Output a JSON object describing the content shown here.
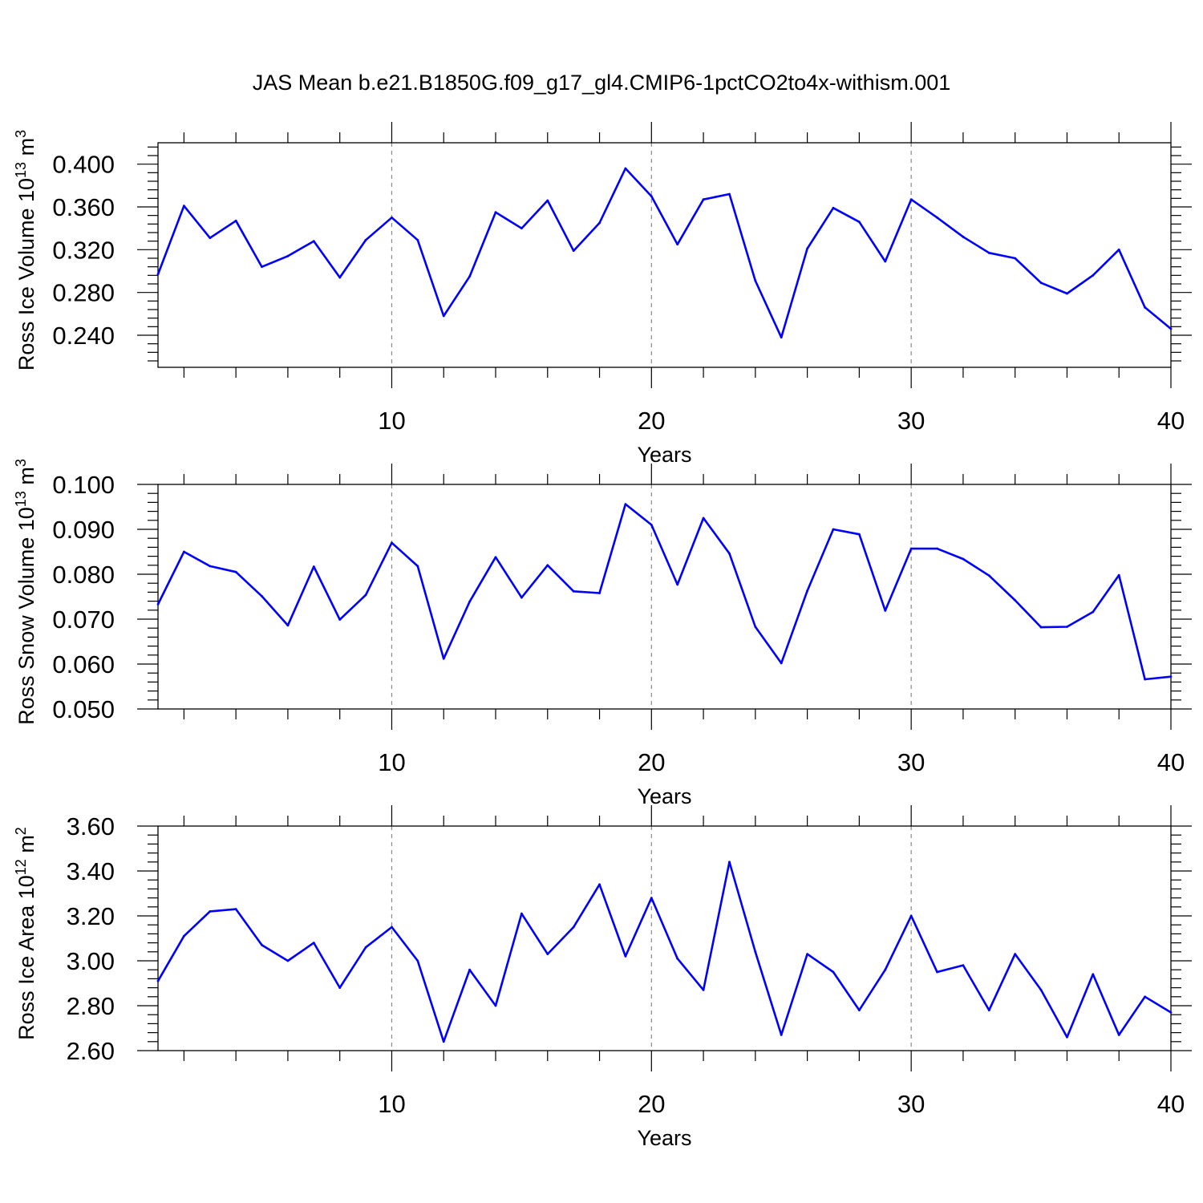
{
  "figure_title": "JAS Mean b.e21.B1850G.f09_g17_gl4.CMIP6-1pctCO2to4x-withism.001",
  "colors": {
    "line": "#0000ff",
    "axis": "#000000",
    "grid": "#888888"
  },
  "chart_data": [
    {
      "type": "line",
      "title": "",
      "xlabel": "Years",
      "ylabel": "Ross Ice Volume 10^13 m^3",
      "ylabel_parts": {
        "main": "Ross Ice Volume 10",
        "sup1": "13",
        "mid": " m",
        "sup2": "3"
      },
      "xlim": [
        1,
        40
      ],
      "ylim": [
        0.21,
        0.42
      ],
      "x_ticks": [
        10,
        20,
        30,
        40
      ],
      "x_tick_labels": [
        "10",
        "20",
        "30",
        "40"
      ],
      "y_ticks": [
        0.24,
        0.28,
        0.32,
        0.36,
        0.4
      ],
      "y_tick_labels": [
        "0.240",
        "0.280",
        "0.320",
        "0.360",
        "0.400"
      ],
      "grid": "vertical dashed at major x ticks",
      "series": [
        {
          "name": "Ross Ice Volume",
          "x": [
            1,
            2,
            3,
            4,
            5,
            6,
            7,
            8,
            9,
            10,
            11,
            12,
            13,
            14,
            15,
            16,
            17,
            18,
            19,
            20,
            21,
            22,
            23,
            24,
            25,
            26,
            27,
            28,
            29,
            30,
            31,
            32,
            33,
            34,
            35,
            36,
            37,
            38,
            39,
            40
          ],
          "values": [
            0.297,
            0.361,
            0.331,
            0.347,
            0.304,
            0.314,
            0.328,
            0.294,
            0.329,
            0.35,
            0.329,
            0.258,
            0.295,
            0.355,
            0.34,
            0.366,
            0.319,
            0.345,
            0.396,
            0.37,
            0.325,
            0.367,
            0.372,
            0.291,
            0.238,
            0.321,
            0.359,
            0.346,
            0.309,
            0.367,
            0.35,
            0.332,
            0.317,
            0.312,
            0.289,
            0.279,
            0.296,
            0.32,
            0.266,
            0.246
          ]
        }
      ]
    },
    {
      "type": "line",
      "title": "",
      "xlabel": "Years",
      "ylabel": "Ross Snow Volume 10^13 m^3",
      "ylabel_parts": {
        "main": "Ross Snow Volume 10",
        "sup1": "13",
        "mid": " m",
        "sup2": "3"
      },
      "xlim": [
        1,
        40
      ],
      "ylim": [
        0.05,
        0.1
      ],
      "x_ticks": [
        10,
        20,
        30,
        40
      ],
      "x_tick_labels": [
        "10",
        "20",
        "30",
        "40"
      ],
      "y_ticks": [
        0.05,
        0.06,
        0.07,
        0.08,
        0.09,
        0.1
      ],
      "y_tick_labels": [
        "0.050",
        "0.060",
        "0.070",
        "0.080",
        "0.090",
        "0.100"
      ],
      "grid": "vertical dashed at major x ticks",
      "series": [
        {
          "name": "Ross Snow Volume",
          "x": [
            1,
            2,
            3,
            4,
            5,
            6,
            7,
            8,
            9,
            10,
            11,
            12,
            13,
            14,
            15,
            16,
            17,
            18,
            19,
            20,
            21,
            22,
            23,
            24,
            25,
            26,
            27,
            28,
            29,
            30,
            31,
            32,
            33,
            34,
            35,
            36,
            37,
            38,
            39,
            40
          ],
          "values": [
            0.0733,
            0.085,
            0.0818,
            0.0805,
            0.0751,
            0.0686,
            0.0817,
            0.0699,
            0.0754,
            0.087,
            0.0818,
            0.0612,
            0.0739,
            0.0838,
            0.0748,
            0.082,
            0.0762,
            0.0758,
            0.0956,
            0.091,
            0.0777,
            0.0925,
            0.0846,
            0.0683,
            0.0602,
            0.0763,
            0.09,
            0.0889,
            0.0719,
            0.0857,
            0.0857,
            0.0834,
            0.0797,
            0.0742,
            0.0682,
            0.0683,
            0.0716,
            0.0798,
            0.0566,
            0.0572
          ]
        }
      ]
    },
    {
      "type": "line",
      "title": "",
      "xlabel": "Years",
      "ylabel": "Ross Ice Area 10^12 m^2",
      "ylabel_parts": {
        "main": "Ross Ice Area 10",
        "sup1": "12",
        "mid": " m",
        "sup2": "2"
      },
      "xlim": [
        1,
        40
      ],
      "ylim": [
        2.6,
        3.6
      ],
      "x_ticks": [
        10,
        20,
        30,
        40
      ],
      "x_tick_labels": [
        "10",
        "20",
        "30",
        "40"
      ],
      "y_ticks": [
        2.6,
        2.8,
        3.0,
        3.2,
        3.4,
        3.6
      ],
      "y_tick_labels": [
        "2.60",
        "2.80",
        "3.00",
        "3.20",
        "3.40",
        "3.60"
      ],
      "grid": "vertical dashed at major x ticks",
      "series": [
        {
          "name": "Ross Ice Area",
          "x": [
            1,
            2,
            3,
            4,
            5,
            6,
            7,
            8,
            9,
            10,
            11,
            12,
            13,
            14,
            15,
            16,
            17,
            18,
            19,
            20,
            21,
            22,
            23,
            24,
            25,
            26,
            27,
            28,
            29,
            30,
            31,
            32,
            33,
            34,
            35,
            36,
            37,
            38,
            39,
            40
          ],
          "values": [
            2.91,
            3.11,
            3.22,
            3.23,
            3.07,
            3.0,
            3.08,
            2.88,
            3.06,
            3.15,
            3.0,
            2.64,
            2.96,
            2.8,
            3.21,
            3.03,
            3.15,
            3.34,
            3.02,
            3.28,
            3.01,
            2.87,
            3.44,
            3.04,
            2.67,
            3.03,
            2.95,
            2.78,
            2.96,
            3.2,
            2.95,
            2.98,
            2.78,
            3.03,
            2.87,
            2.66,
            2.94,
            2.67,
            2.84,
            2.77
          ]
        }
      ]
    }
  ]
}
